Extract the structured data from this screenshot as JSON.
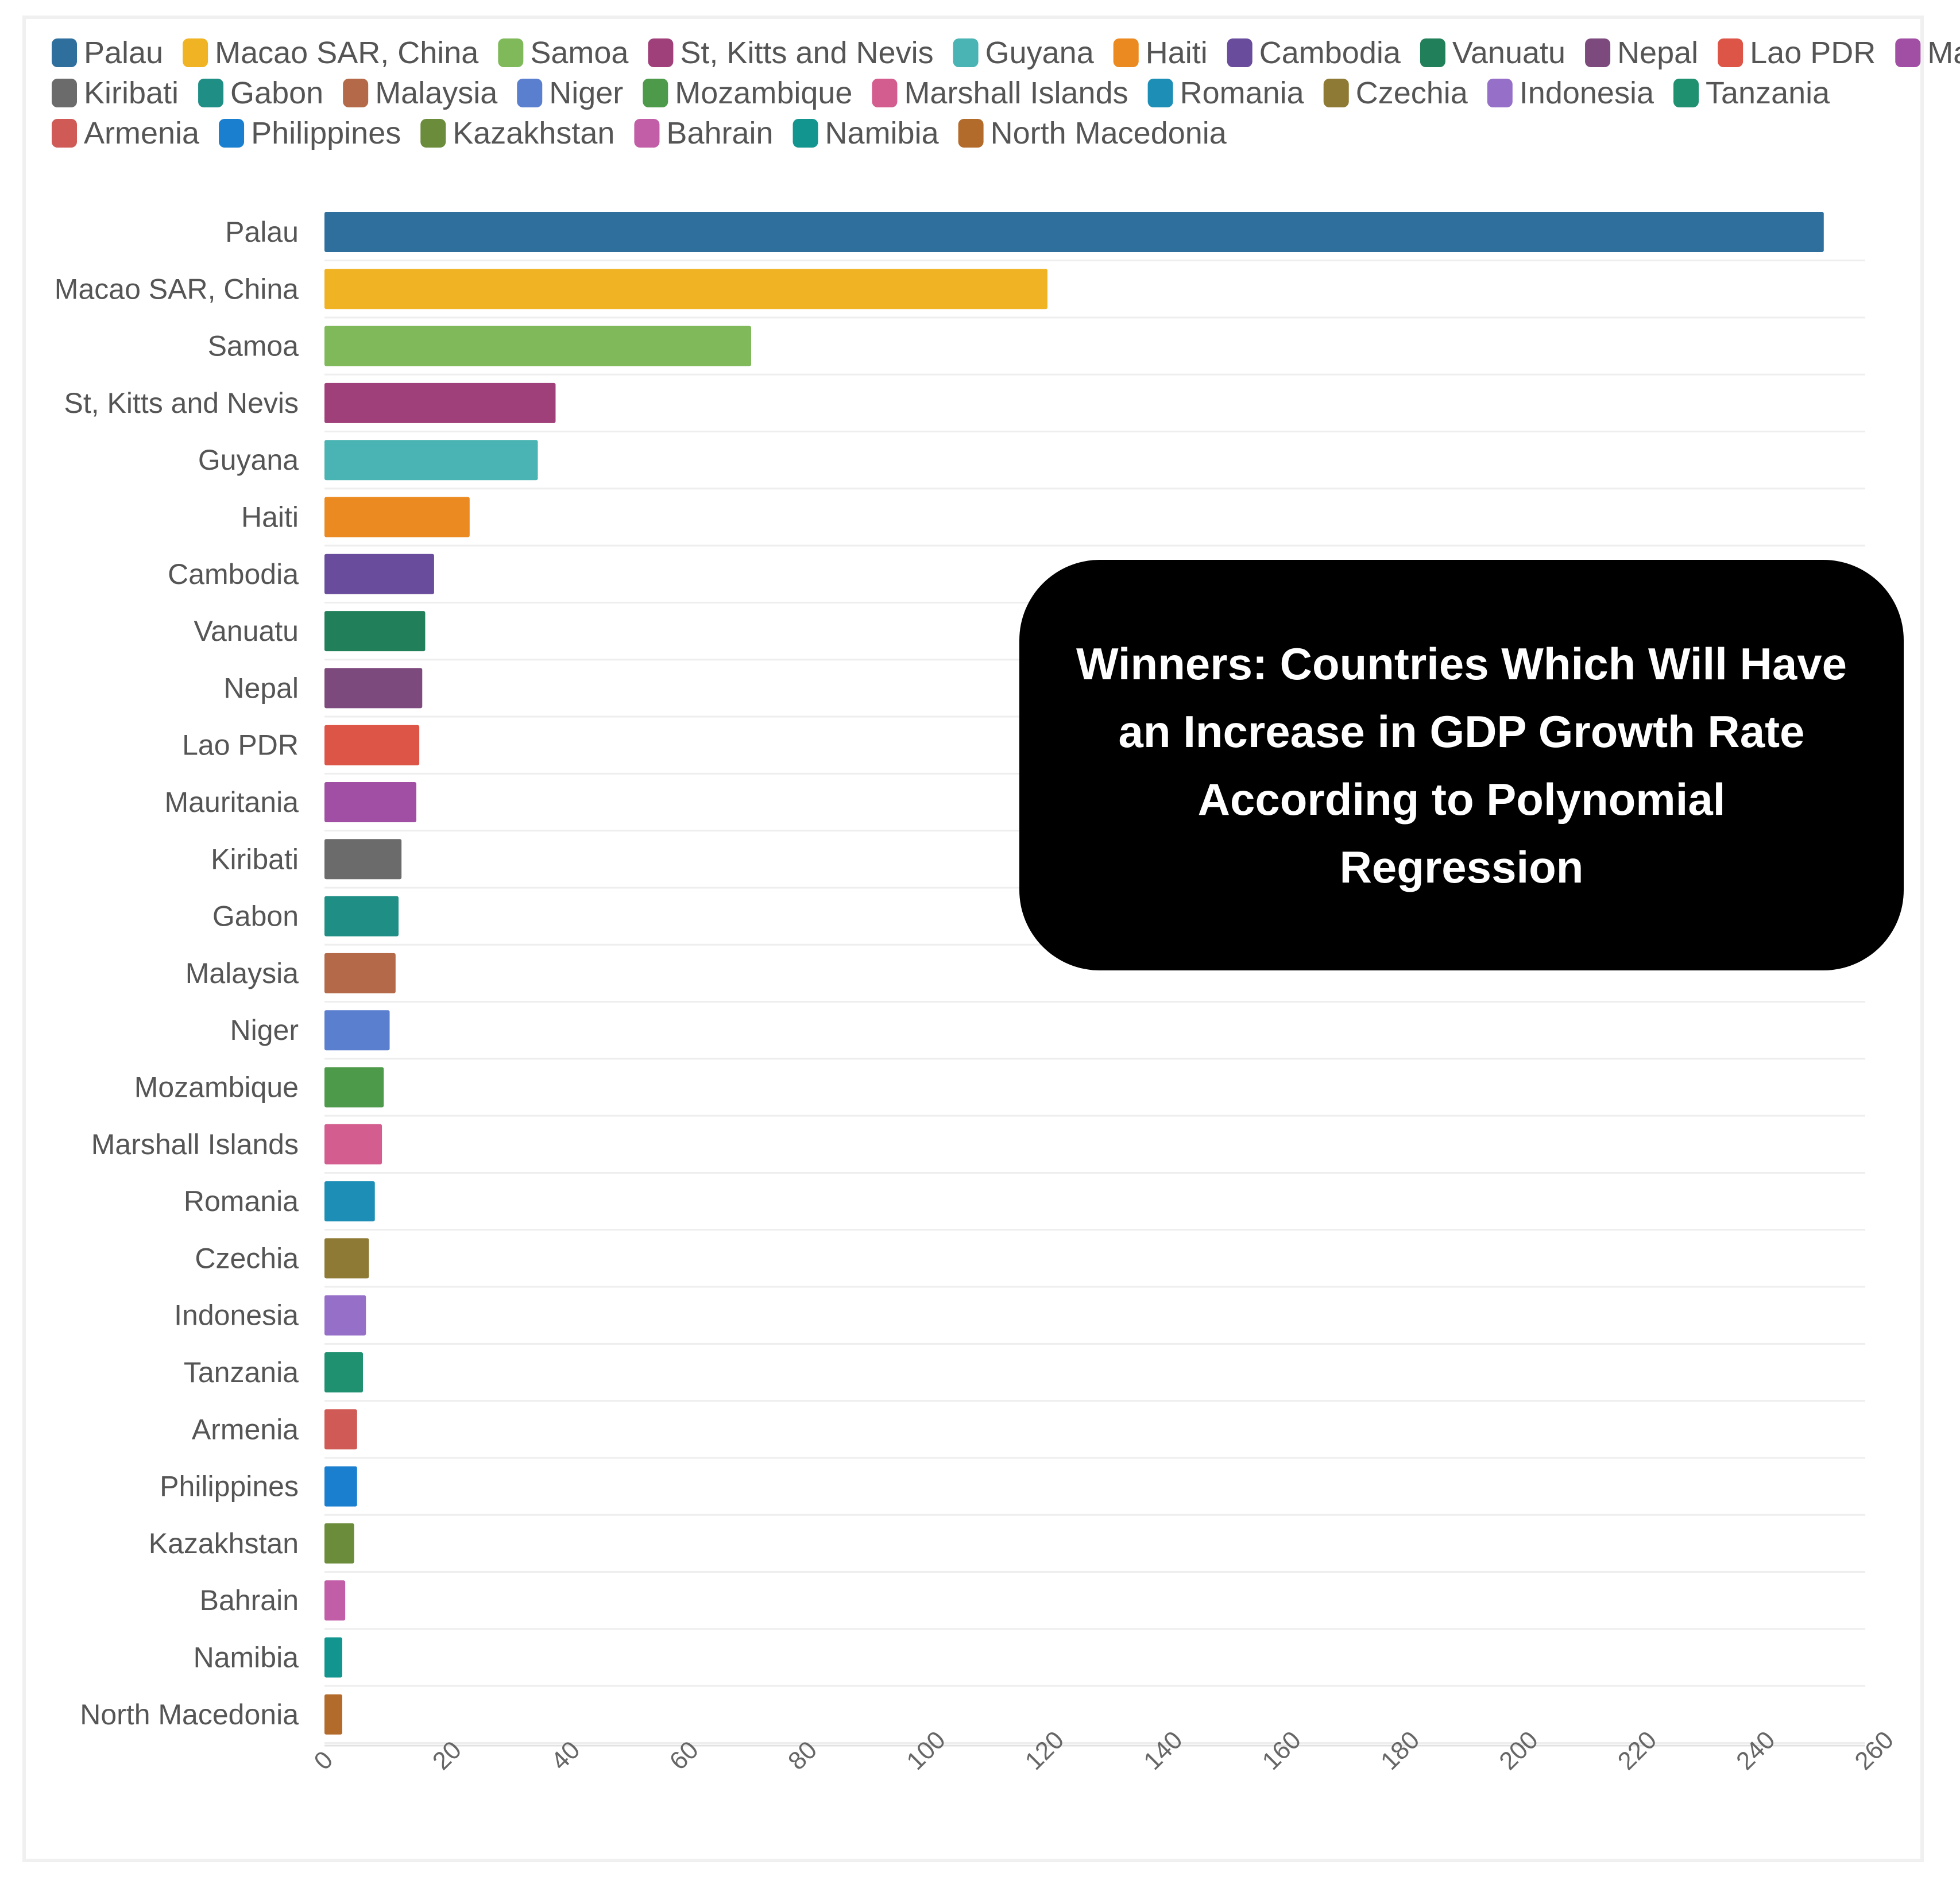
{
  "chart_data": {
    "type": "bar",
    "orientation": "horizontal",
    "title": "Winners: Countries Which Will Have an Increase in GDP Growth Rate According to Polynomial Regression",
    "xlabel": "",
    "ylabel": "",
    "xlim": [
      0,
      260
    ],
    "x_ticks": [
      0,
      20,
      40,
      60,
      80,
      100,
      120,
      140,
      160,
      180,
      200,
      220,
      240,
      260
    ],
    "grid": true,
    "legend_position": "top",
    "categories": [
      "Palau",
      "Macao SAR, China",
      "Samoa",
      "St, Kitts and Nevis",
      "Guyana",
      "Haiti",
      "Cambodia",
      "Vanuatu",
      "Nepal",
      "Lao PDR",
      "Mauritania",
      "Kiribati",
      "Gabon",
      "Malaysia",
      "Niger",
      "Mozambique",
      "Marshall Islands",
      "Romania",
      "Czechia",
      "Indonesia",
      "Tanzania",
      "Armenia",
      "Philippines",
      "Kazakhstan",
      "Bahrain",
      "Namibia",
      "North Macedonia"
    ],
    "values": [
      253,
      122,
      72,
      39,
      36,
      24.5,
      18.5,
      17,
      16.5,
      16,
      15.5,
      13,
      12.5,
      12,
      11,
      10,
      9.7,
      8.5,
      7.5,
      7,
      6.5,
      5.5,
      5.5,
      5,
      3.5,
      3,
      3
    ],
    "colors": [
      "#2e6f9e",
      "#f0b323",
      "#7fb95a",
      "#a0407a",
      "#4ab3b3",
      "#ec8a22",
      "#6a4c9c",
      "#21805a",
      "#7c4a7c",
      "#dd5547",
      "#a14fa4",
      "#6b6b6b",
      "#1f8f86",
      "#b46a48",
      "#5b7fcf",
      "#4d9a4a",
      "#d35d8e",
      "#1d8fb6",
      "#8e7a34",
      "#9670c8",
      "#1f9070",
      "#d05a55",
      "#1b7fd0",
      "#6b8c3a",
      "#c15ea7",
      "#12958e",
      "#b36b2c"
    ]
  }
}
